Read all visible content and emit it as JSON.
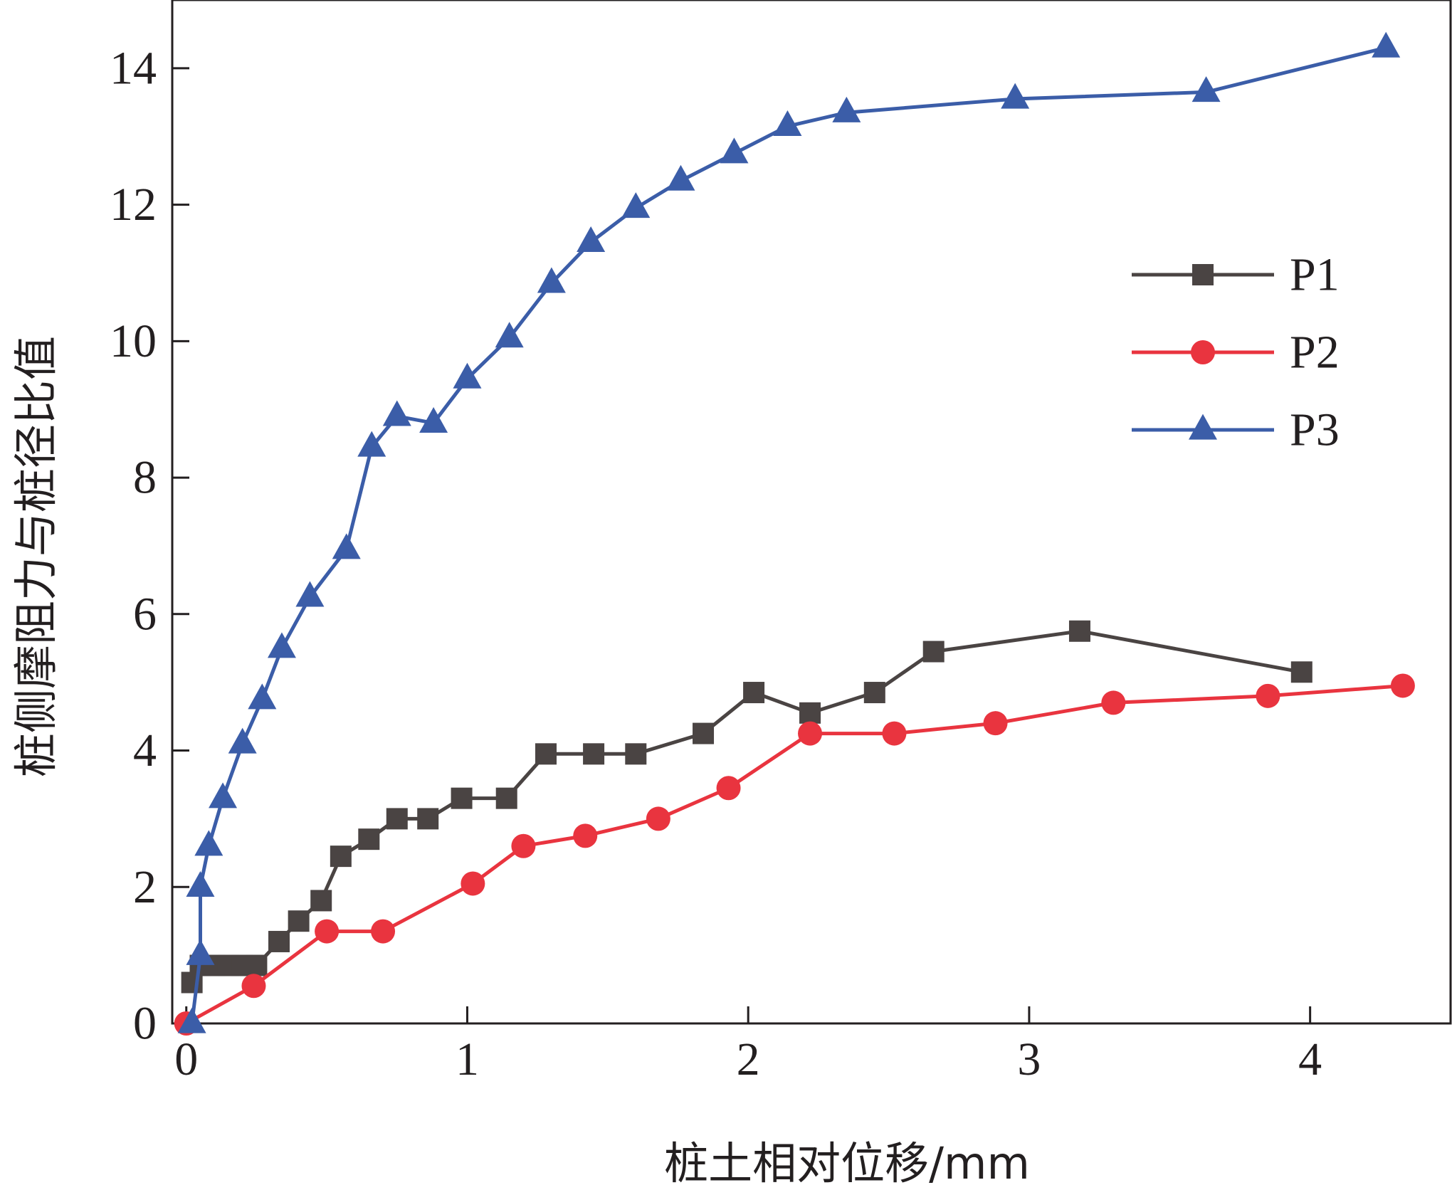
{
  "chart_data": {
    "type": "line",
    "title": "",
    "xlabel": "桩土相对位移/mm",
    "ylabel": "桩侧摩阻力与桩径比值",
    "xlim": [
      -0.05,
      4.5
    ],
    "ylim": [
      0,
      15
    ],
    "xticks": [
      0,
      1,
      2,
      3,
      4
    ],
    "yticks": [
      0,
      2,
      4,
      6,
      8,
      10,
      12,
      14
    ],
    "grid": false,
    "legend_position": "upper-right",
    "series": [
      {
        "name": "P1",
        "color": "#4a4443",
        "marker": "square",
        "x": [
          0.02,
          0.05,
          0.1,
          0.15,
          0.2,
          0.25,
          0.33,
          0.4,
          0.48,
          0.55,
          0.65,
          0.75,
          0.86,
          0.98,
          1.14,
          1.28,
          1.45,
          1.6,
          1.84,
          2.02,
          2.22,
          2.45,
          2.66,
          3.18,
          3.97
        ],
        "y": [
          0.6,
          0.85,
          0.85,
          0.85,
          0.85,
          0.85,
          1.2,
          1.5,
          1.8,
          2.45,
          2.7,
          3.0,
          3.0,
          3.3,
          3.3,
          3.95,
          3.95,
          3.95,
          4.25,
          4.85,
          4.55,
          4.85,
          5.45,
          5.75,
          5.15
        ]
      },
      {
        "name": "P2",
        "color": "#e9343f",
        "marker": "circle",
        "x": [
          0.0,
          0.24,
          0.5,
          0.7,
          1.02,
          1.2,
          1.42,
          1.68,
          1.93,
          2.22,
          2.52,
          2.88,
          3.3,
          3.85,
          4.33
        ],
        "y": [
          0.0,
          0.55,
          1.35,
          1.35,
          2.05,
          2.6,
          2.75,
          3.0,
          3.45,
          4.25,
          4.25,
          4.4,
          4.7,
          4.8,
          4.95
        ]
      },
      {
        "name": "P3",
        "color": "#3b5da8",
        "marker": "triangle",
        "x": [
          0.02,
          0.05,
          0.05,
          0.08,
          0.13,
          0.2,
          0.27,
          0.34,
          0.44,
          0.57,
          0.66,
          0.75,
          0.88,
          1.0,
          1.15,
          1.3,
          1.44,
          1.6,
          1.76,
          1.95,
          2.14,
          2.35,
          2.95,
          3.63,
          4.27
        ],
        "y": [
          0.0,
          1.0,
          2.0,
          2.6,
          3.3,
          4.1,
          4.75,
          5.5,
          6.25,
          6.95,
          8.45,
          8.9,
          8.8,
          9.45,
          10.05,
          10.85,
          11.45,
          11.95,
          12.35,
          12.75,
          13.15,
          13.35,
          13.55,
          13.65,
          14.3
        ]
      }
    ]
  }
}
